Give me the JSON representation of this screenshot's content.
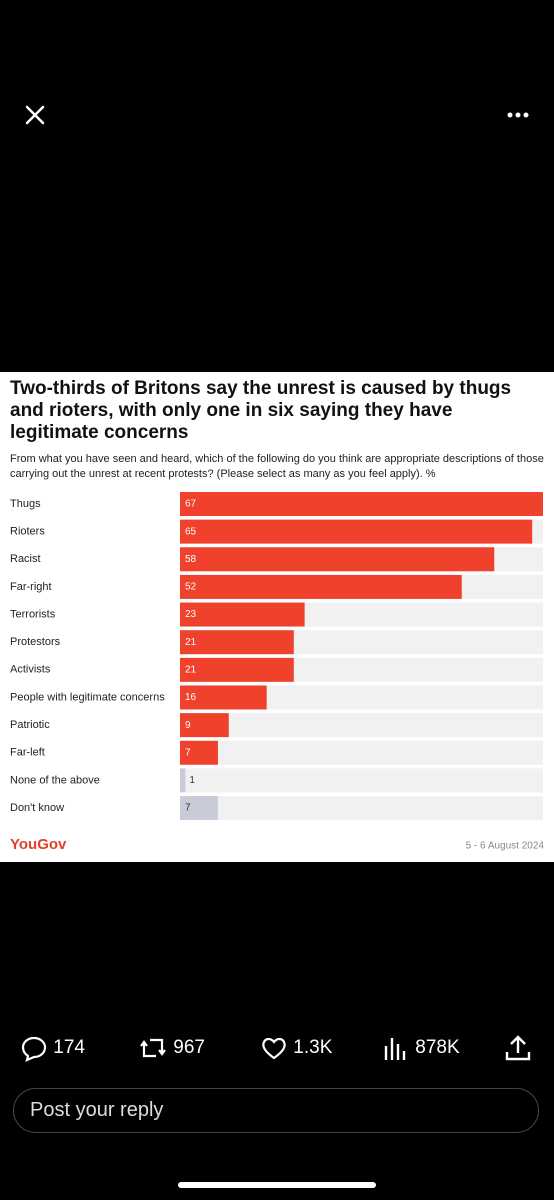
{
  "chart_data": {
    "type": "bar",
    "orientation": "horizontal",
    "title": "Two-thirds of Britons say the unrest is caused by thugs and rioters, with only one in six saying they have legitimate concerns",
    "subtitle": "From what you have seen and heard, which of the following do you think are appropriate descriptions of those carrying out the unrest at recent protests? (Please select as many as you feel apply). %",
    "categories": [
      "Thugs",
      "Rioters",
      "Racist",
      "Far-right",
      "Terrorists",
      "Protestors",
      "Activists",
      "People with legitimate concerns",
      "Patriotic",
      "Far-left",
      "None of the above",
      "Don't know"
    ],
    "values": [
      67,
      65,
      58,
      52,
      23,
      21,
      21,
      16,
      9,
      7,
      1,
      7
    ],
    "colors": [
      "#f0412c",
      "#f0412c",
      "#f0412c",
      "#f0412c",
      "#f0412c",
      "#f0412c",
      "#f0412c",
      "#f0412c",
      "#f0412c",
      "#f0412c",
      "#c9ccd8",
      "#c9ccd8"
    ],
    "track_color": "#f1f1f1",
    "xlim": [
      0,
      67
    ],
    "source": "YouGov",
    "date": "5 - 6 August 2024"
  },
  "actions": {
    "replies": "174",
    "reposts": "967",
    "likes": "1.3K",
    "views": "878K"
  },
  "reply_placeholder": "Post your reply"
}
